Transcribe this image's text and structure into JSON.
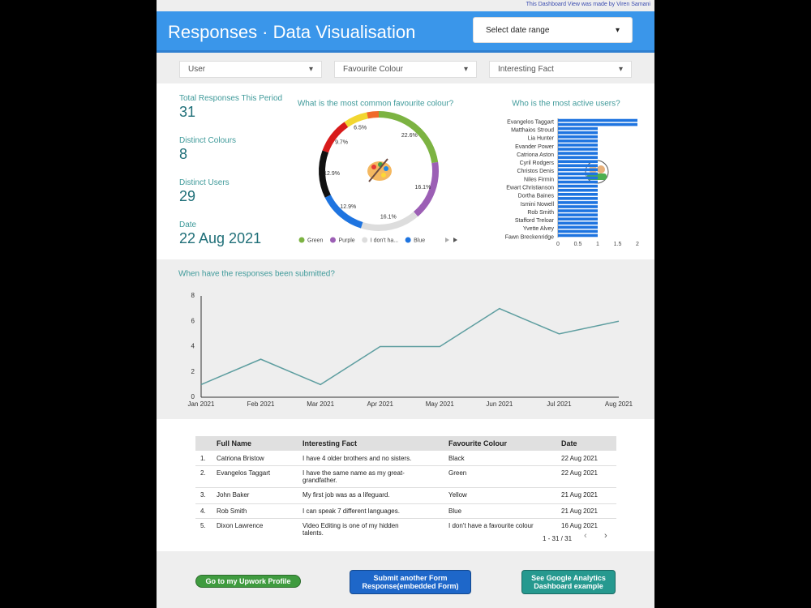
{
  "credit": "This Dashboard View was made by Viren Samani",
  "header": {
    "title": "Responses · Data Visualisation",
    "date_selector": "Select date range"
  },
  "filters": [
    "User",
    "Favourite Colour",
    "Interesting Fact"
  ],
  "scorecards": [
    {
      "label": "Total Responses This Period",
      "value": "31"
    },
    {
      "label": "Distinct Colours",
      "value": "8"
    },
    {
      "label": "Distinct Users",
      "value": "29"
    },
    {
      "label": "Date",
      "value": "22 Aug 2021"
    }
  ],
  "chart_data": [
    {
      "type": "donut",
      "title": "What is the most common favourite colour?",
      "categories": [
        "Green",
        "Purple",
        "I don't ha...",
        "Blue",
        null,
        null,
        null,
        null
      ],
      "values": [
        22.6,
        16.1,
        16.1,
        12.9,
        12.9,
        9.7,
        6.5,
        3.2
      ],
      "value_labels": [
        "22.6%",
        "16.1%",
        "16.1%",
        "12.9%",
        "12.9%",
        "9.7%",
        "6.5%",
        null
      ],
      "colors": [
        "#7cb342",
        "#9c5fb5",
        "#dddddd",
        "#1e74e0",
        "#111111",
        "#d81b1b",
        "#f2d630",
        "#f06a2a"
      ]
    },
    {
      "type": "hbar",
      "title": "Who is the most active users?",
      "categories": [
        "Evangelos Taggart",
        null,
        "Matthaios Stroud",
        null,
        "Lia Hunter",
        null,
        "Evander Power",
        null,
        "Catriona Aston",
        null,
        "Cyril Rodgers",
        null,
        "Christos Denis",
        null,
        "Niles Firmin",
        null,
        "Ewart Christianson",
        null,
        "Dortha Baines",
        null,
        "Ismini Nowell",
        null,
        "Rob Smith",
        null,
        "Stafford Treloar",
        null,
        "Yvette Alvey",
        null,
        "Fawn Breckenridge"
      ],
      "values": [
        2,
        2,
        1,
        1,
        1,
        1,
        1,
        1,
        1,
        1,
        1,
        1,
        1,
        1,
        1,
        1,
        1,
        1,
        1,
        1,
        1,
        1,
        1,
        1,
        1,
        1,
        1,
        1,
        1
      ],
      "color": "#1e74e0",
      "xlim": [
        0,
        2
      ],
      "xticks": [
        0,
        0.5,
        1,
        1.5,
        2
      ]
    },
    {
      "type": "line",
      "title": "When have the responses been submitted?",
      "categories": [
        "Jan 2021",
        "Feb 2021",
        "Mar 2021",
        "Apr 2021",
        "May 2021",
        "Jun 2021",
        "Jul 2021",
        "Aug 2021"
      ],
      "values": [
        1,
        3,
        1,
        4,
        4,
        7,
        5,
        6
      ],
      "color": "#5e9ea0",
      "ylim": [
        0,
        8
      ],
      "yticks": [
        0,
        2,
        4,
        6,
        8
      ]
    }
  ],
  "table": {
    "columns": [
      "Full Name",
      "Interesting Fact",
      "Favourite Colour",
      "Date"
    ],
    "rows": [
      [
        "1.",
        "Catriona Bristow",
        "I have 4 older brothers and no sisters.",
        "Black",
        "22 Aug 2021"
      ],
      [
        "2.",
        "Evangelos Taggart",
        "I have the same name as my great-grandfather.",
        "Green",
        "22 Aug 2021"
      ],
      [
        "3.",
        "John Baker",
        "My first job was as a lifeguard.",
        "Yellow",
        "21 Aug 2021"
      ],
      [
        "4.",
        "Rob Smith",
        "I can speak 7 different languages.",
        "Blue",
        "21 Aug 2021"
      ],
      [
        "5.",
        "Dixon Lawrence",
        "Video Editing is one of my hidden talents.",
        "I don't have a favourite colour",
        "16 Aug 2021"
      ]
    ],
    "pagination": "1 - 31 / 31"
  },
  "buttons": [
    "Go to my Upwork Profile",
    "Submit another Form Response(embedded Form)",
    "See Google Analytics Dashboard example"
  ]
}
